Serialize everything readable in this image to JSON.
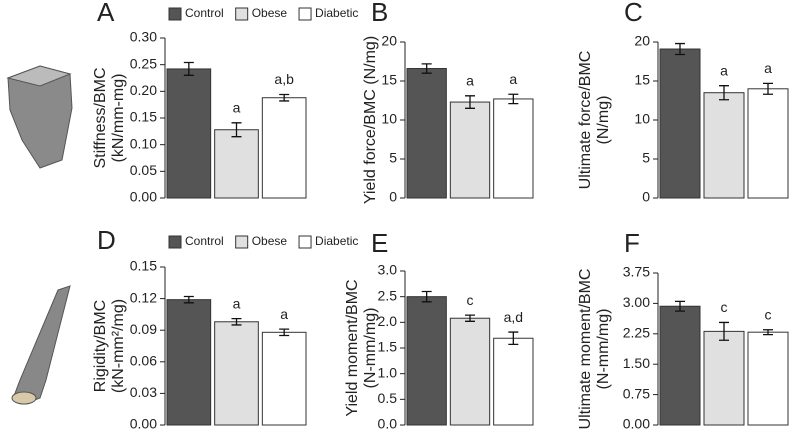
{
  "chart_data": [
    {
      "type": "bar",
      "title": "A",
      "ylabel": [
        "Stiffness/BMC",
        "(kN/mm-mg)"
      ],
      "legend": [
        "Control",
        "Obese",
        "Diabetic"
      ],
      "colors": [
        "#555555",
        "#e0e0e0",
        "#ffffff"
      ],
      "values": [
        0.242,
        0.128,
        0.188
      ],
      "errors": [
        0.012,
        0.013,
        0.006
      ],
      "annotations": [
        null,
        "a",
        "a,b"
      ],
      "ylim": [
        0,
        0.3
      ],
      "yticks": [
        {
          "value": 0,
          "label": "0.00"
        },
        0.05,
        {
          "value": 0.1,
          "label": "0.10"
        },
        0.15,
        {
          "value": 0.2,
          "label": "0.20"
        },
        0.25,
        {
          "value": 0.3,
          "label": "0.30"
        }
      ]
    },
    {
      "type": "bar",
      "title": "B",
      "ylabel": [
        "Yield force/BMC (N/mg)"
      ],
      "colors": [
        "#555555",
        "#e0e0e0",
        "#ffffff"
      ],
      "values": [
        16.6,
        12.3,
        12.7
      ],
      "errors": [
        0.6,
        0.8,
        0.6
      ],
      "annotations": [
        null,
        "a",
        "a"
      ],
      "ylim": [
        0,
        20
      ],
      "yticks": [
        0,
        5,
        10,
        15,
        20
      ]
    },
    {
      "type": "bar",
      "title": "C",
      "ylabel": [
        "Ultimate force/BMC",
        "(N/mg)"
      ],
      "colors": [
        "#555555",
        "#e0e0e0",
        "#ffffff"
      ],
      "values": [
        19.1,
        13.5,
        14.0
      ],
      "errors": [
        0.7,
        0.9,
        0.7
      ],
      "annotations": [
        null,
        "a",
        "a"
      ],
      "ylim": [
        0,
        20
      ],
      "yticks": [
        0,
        5,
        10,
        15,
        20
      ]
    },
    {
      "type": "bar",
      "title": "D",
      "ylabel": [
        "Rigidity/BMC",
        "(kN-mm²/mg)"
      ],
      "legend": [
        "Control",
        "Obese",
        "Diabetic"
      ],
      "colors": [
        "#555555",
        "#e0e0e0",
        "#ffffff"
      ],
      "values": [
        0.119,
        0.098,
        0.088
      ],
      "errors": [
        0.003,
        0.003,
        0.003
      ],
      "annotations": [
        null,
        "a",
        "a"
      ],
      "ylim": [
        0,
        0.15
      ],
      "yticks": [
        {
          "value": 0,
          "label": "0.00"
        },
        0.03,
        0.06,
        0.09,
        {
          "value": 0.12,
          "label": "0.12"
        },
        0.15
      ]
    },
    {
      "type": "bar",
      "title": "E",
      "ylabel": [
        "Yield moment/BMC",
        "(N-mm/mg)"
      ],
      "colors": [
        "#555555",
        "#e0e0e0",
        "#ffffff"
      ],
      "values": [
        2.5,
        2.08,
        1.69
      ],
      "errors": [
        0.1,
        0.06,
        0.12
      ],
      "annotations": [
        null,
        "c",
        "a,d"
      ],
      "ylim": [
        0,
        3
      ],
      "yticks": [
        {
          "value": 0,
          "label": "0.0"
        },
        0.5,
        {
          "value": 1,
          "label": "1.0"
        },
        1.5,
        {
          "value": 2,
          "label": "2.0"
        },
        2.5,
        {
          "value": 3,
          "label": "3.0"
        }
      ]
    },
    {
      "type": "bar",
      "title": "F",
      "ylabel": [
        "Ultimate moment/BMC",
        "(N-mm/mg)"
      ],
      "colors": [
        "#555555",
        "#e0e0e0",
        "#ffffff"
      ],
      "values": [
        2.93,
        2.31,
        2.29
      ],
      "errors": [
        0.12,
        0.22,
        0.06
      ],
      "annotations": [
        null,
        "c",
        "c"
      ],
      "ylim": [
        0,
        3.75
      ],
      "yticks": [
        {
          "value": 0,
          "label": "0.00"
        },
        0.75,
        {
          "value": 1.5,
          "label": "1.50"
        },
        2.25,
        {
          "value": 3,
          "label": "3.00"
        },
        3.75
      ]
    }
  ]
}
